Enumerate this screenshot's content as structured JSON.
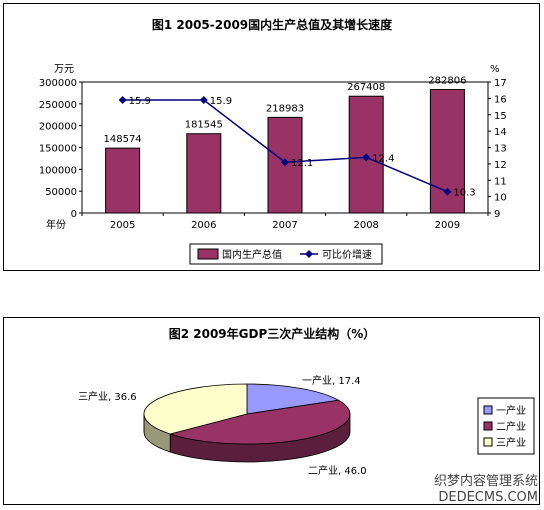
{
  "chart_data": [
    {
      "type": "bar+line",
      "title": "图1   2005-2009国内生产总值及其增长速度",
      "xlabel": "年份",
      "y_left_unit": "万元",
      "y_right_unit": "%",
      "categories": [
        "2005",
        "2006",
        "2007",
        "2008",
        "2009"
      ],
      "ylim_left": [
        0,
        300000
      ],
      "yticks_left": [
        "0",
        "50000",
        "100000",
        "150000",
        "200000",
        "250000",
        "300000"
      ],
      "ylim_right": [
        9,
        17
      ],
      "yticks_right": [
        "9",
        "10",
        "11",
        "12",
        "13",
        "14",
        "15",
        "16",
        "17"
      ],
      "series": [
        {
          "name": "国内生产总值",
          "kind": "bar",
          "axis": "left",
          "color": "#993366",
          "values": [
            148574,
            181545,
            218983,
            267408,
            282806
          ],
          "labels": [
            "148574",
            "181545",
            "218983",
            "267408",
            "282806"
          ]
        },
        {
          "name": "可比价增速",
          "kind": "line",
          "axis": "right",
          "color": "#000080",
          "values": [
            15.9,
            15.9,
            12.1,
            12.4,
            10.3
          ],
          "labels": [
            "15.9",
            "15.9",
            "12.1",
            "12.4",
            "10.3"
          ]
        }
      ],
      "legend_position": "bottom"
    },
    {
      "type": "pie",
      "title": "图2   2009年GDP三次产业结构（%）",
      "slices": [
        {
          "name": "一产业",
          "value": 17.4,
          "label": "一产业, 17.4",
          "color": "#9999ff"
        },
        {
          "name": "二产业",
          "value": 46.0,
          "label": "二产业, 46.0",
          "color": "#993366"
        },
        {
          "name": "三产业",
          "value": 36.6,
          "label": "三产业, 36.6",
          "color": "#ffffcc"
        }
      ],
      "legend_position": "right"
    }
  ],
  "watermark": {
    "line1": "织梦内容管理系统",
    "line2": "DEDECMS.COM"
  }
}
